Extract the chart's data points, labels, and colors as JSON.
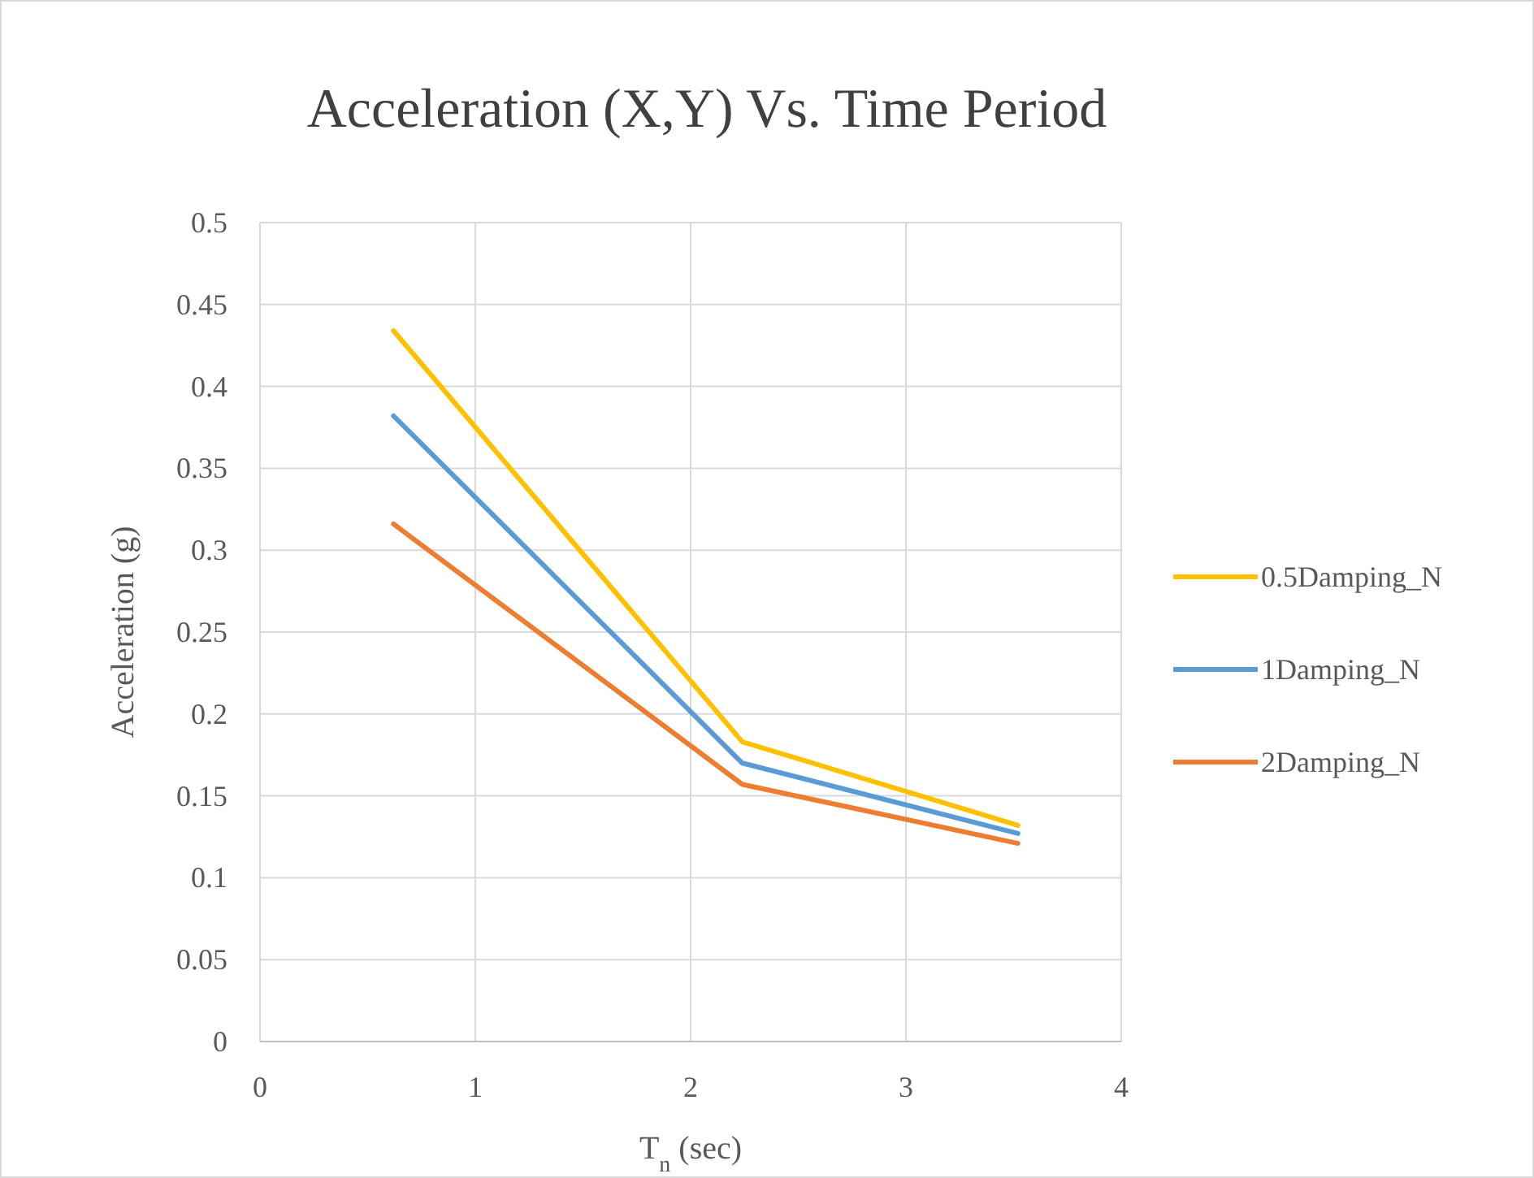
{
  "chart_data": {
    "type": "line",
    "title": "Acceleration (X,Y) Vs. Time Period",
    "xlabel": "T$_{n}$ (sec)",
    "ylabel": "Acceleration (g)",
    "x": [
      0.62,
      2.24,
      3.52
    ],
    "series": [
      {
        "name": "0.5Damping_N",
        "color": "#ffc000",
        "values": [
          0.434,
          0.183,
          0.132
        ]
      },
      {
        "name": "1Damping_N",
        "color": "#5b9bd5",
        "values": [
          0.382,
          0.17,
          0.127
        ]
      },
      {
        "name": "2Damping_N",
        "color": "#ed7d31",
        "values": [
          0.316,
          0.157,
          0.121
        ]
      }
    ],
    "xlim": [
      0,
      4
    ],
    "xticks": [
      0,
      1,
      2,
      3,
      4
    ],
    "ylim": [
      0,
      0.5
    ],
    "yticks": [
      0,
      0.05,
      0.1,
      0.15,
      0.2,
      0.25,
      0.3,
      0.35,
      0.4,
      0.45,
      0.5
    ],
    "grid": true,
    "legend": "right",
    "marker": "none",
    "line_style": "solid"
  }
}
